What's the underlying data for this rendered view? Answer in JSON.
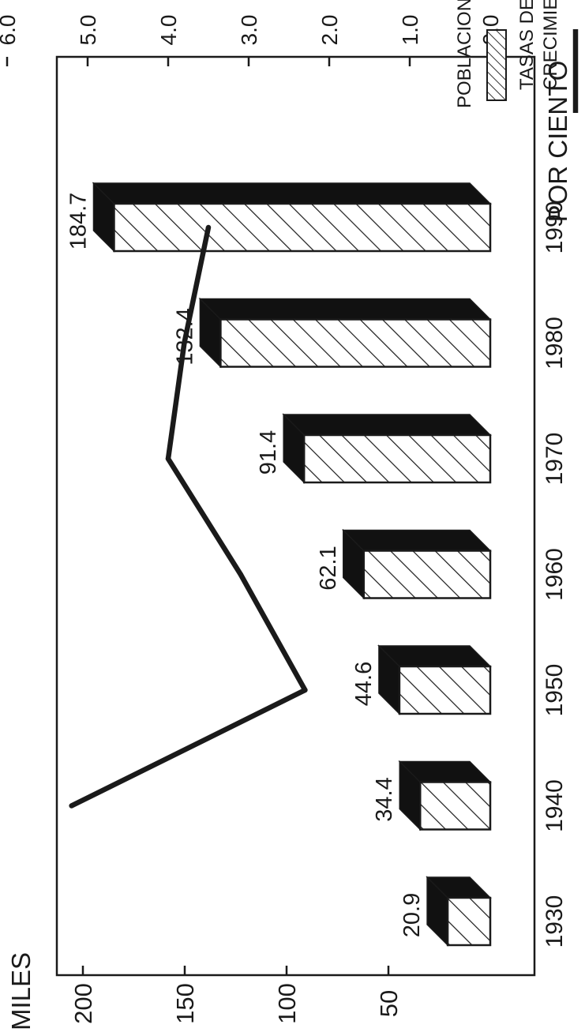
{
  "chart_data": {
    "type": "bar",
    "title": "",
    "left_axis_label": "MILES",
    "right_axis_label": "POR CIENTO",
    "categories": [
      "1930",
      "1940",
      "1950",
      "1960",
      "1970",
      "1980",
      "1990"
    ],
    "series": [
      {
        "name": "POBLACION",
        "type": "bar",
        "axis": "left",
        "values": [
          20.9,
          34.4,
          44.6,
          62.1,
          91.4,
          132.4,
          184.7
        ],
        "value_labels": [
          "20.9",
          "34.4",
          "44.6",
          "62.1",
          "91.4",
          "132.4",
          "184.7"
        ],
        "pattern": "diagonal-hatch"
      },
      {
        "name": "TASAS DE CRECIMIENTO",
        "type": "line",
        "axis": "right",
        "values": [
          null,
          5.2,
          2.3,
          3.1,
          4.0,
          3.8,
          3.5
        ]
      }
    ],
    "left_axis": {
      "range": [
        0,
        220
      ],
      "ticks": [
        "50",
        "100",
        "150",
        "200"
      ],
      "tick_values": [
        50,
        100,
        150,
        200
      ]
    },
    "right_axis": {
      "range": [
        0,
        6.0
      ],
      "ticks": [
        "0.0",
        "1.0",
        "2.0",
        "3.0",
        "4.0",
        "5.0",
        "6.0"
      ],
      "tick_values": [
        0,
        1,
        2,
        3,
        4,
        5,
        6
      ]
    },
    "legend": {
      "position": "top-right",
      "items": [
        {
          "label_lines": [
            "TASAS DE",
            "CRECIMIENTO"
          ],
          "symbol": "line"
        },
        {
          "label_lines": [
            "POBLACION"
          ],
          "symbol": "hatched-box"
        }
      ]
    },
    "grid": false,
    "orientation": "rotated-90-ccw",
    "colors": {
      "ink": "#1a1a1a",
      "bar_face": "#ffffff",
      "bar_shade": "#111111",
      "background": "#ffffff"
    }
  }
}
